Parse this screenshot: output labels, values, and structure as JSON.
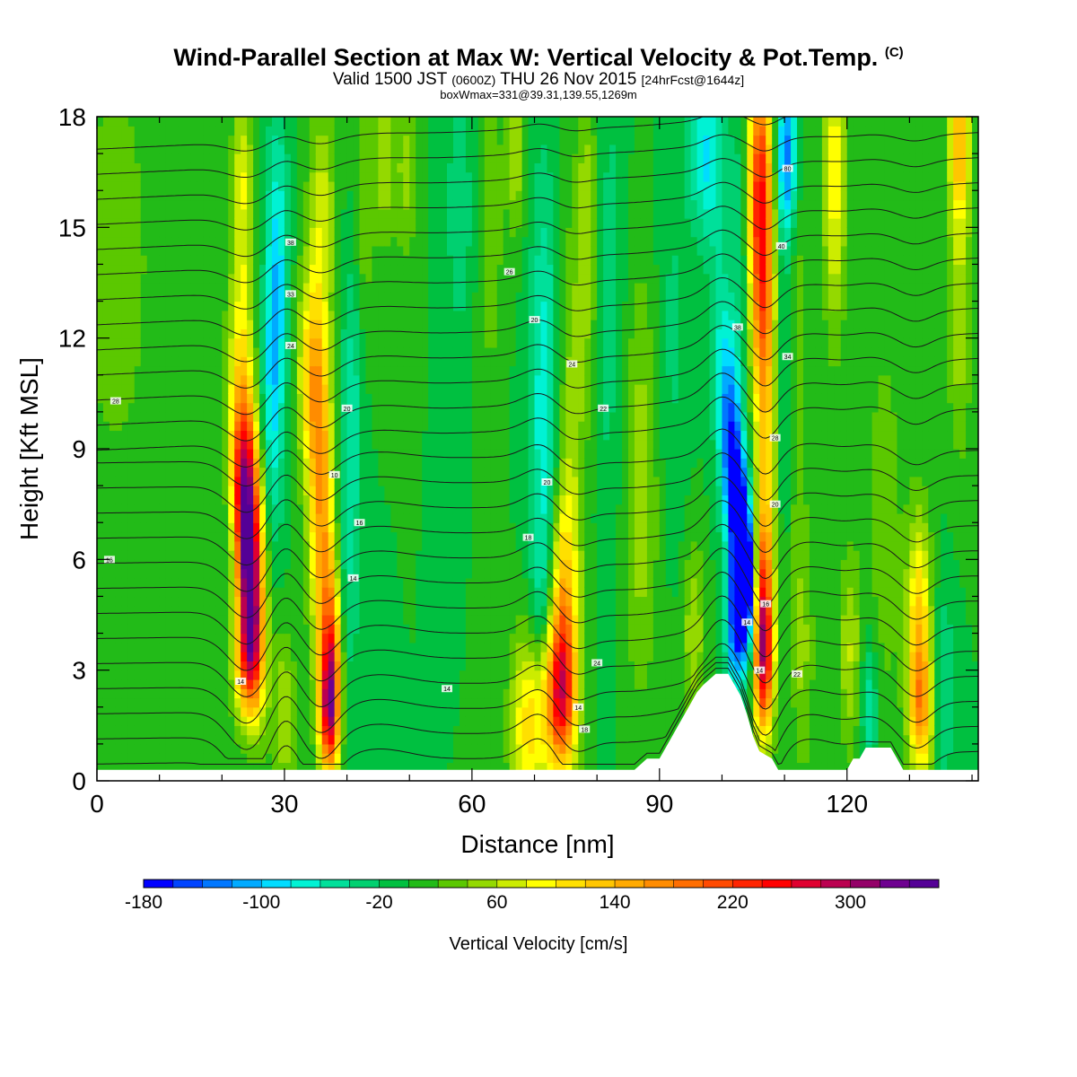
{
  "header": {
    "title_main": "Wind-Parallel Section at Max W: Vertical Velocity & Pot.Temp.",
    "title_mark": "(C)",
    "valid_prefix": "Valid 1500 JST",
    "valid_utc": "(0600Z)",
    "valid_date": "THU 26 Nov 2015",
    "forecast": "[24hrFcst@1644z]",
    "box_info": "boxWmax=331@39.31,139.55,1269m"
  },
  "chart_data": {
    "type": "heatmap",
    "xlabel": "Distance [nm]",
    "ylabel": "Height [Kft MSL]",
    "xlim": [
      0,
      141
    ],
    "ylim": [
      0,
      18
    ],
    "x_ticks": [
      0,
      30,
      60,
      90,
      120
    ],
    "y_ticks": [
      0,
      3,
      6,
      9,
      12,
      15,
      18
    ],
    "grid": false,
    "colorbar": {
      "label": "Vertical Velocity [cm/s]",
      "placement": "bottom",
      "min": -180,
      "max": 360,
      "step": 20,
      "tick_labels": [
        "-180",
        "-100",
        "-20",
        "60",
        "140",
        "220",
        "300"
      ],
      "tick_values": [
        -180,
        -100,
        -20,
        60,
        140,
        220,
        300
      ],
      "colors": [
        "#0000ff",
        "#0044ff",
        "#0077ff",
        "#00aaff",
        "#00dcff",
        "#00f2d4",
        "#00e09a",
        "#00d070",
        "#00c040",
        "#22bb18",
        "#5bc800",
        "#94d900",
        "#ccec00",
        "#ffff00",
        "#ffe000",
        "#ffc600",
        "#ffaa00",
        "#ff8c00",
        "#ff6e00",
        "#ff4a00",
        "#ff2400",
        "#ff0000",
        "#e00030",
        "#bb0050",
        "#940068",
        "#6e0090",
        "#540096"
      ]
    },
    "terrain": [
      [
        0,
        0.3
      ],
      [
        86,
        0.3
      ],
      [
        88,
        0.6
      ],
      [
        90,
        0.6
      ],
      [
        91,
        0.9
      ],
      [
        92,
        1.2
      ],
      [
        93,
        1.5
      ],
      [
        94,
        1.8
      ],
      [
        95,
        2.1
      ],
      [
        96,
        2.4
      ],
      [
        97,
        2.6
      ],
      [
        99,
        2.9
      ],
      [
        101,
        2.9
      ],
      [
        102,
        2.6
      ],
      [
        103,
        2.3
      ],
      [
        104,
        1.8
      ],
      [
        105,
        1.2
      ],
      [
        106,
        0.8
      ],
      [
        108,
        0.6
      ],
      [
        109,
        0.3
      ],
      [
        119,
        0.3
      ],
      [
        120,
        0.3
      ],
      [
        121,
        0.6
      ],
      [
        122,
        0.6
      ],
      [
        123,
        0.9
      ],
      [
        127,
        0.9
      ],
      [
        128,
        0.6
      ],
      [
        129,
        0.3
      ],
      [
        141,
        0.3
      ]
    ],
    "w_features": [
      {
        "x": 24,
        "z": 6.2,
        "sx": 1.3,
        "sz": 2.3,
        "value": 340,
        "tilt": -0.12
      },
      {
        "x": 24.5,
        "z": 8.6,
        "sx": 1.4,
        "sz": 2.5,
        "value": 150,
        "tilt": -0.15
      },
      {
        "x": 24,
        "z": 3.3,
        "sx": 1.5,
        "sz": 1.2,
        "value": 180
      },
      {
        "x": 23.5,
        "z": 14.2,
        "sx": 1.3,
        "sz": 2.2,
        "value": 70
      },
      {
        "x": 23.2,
        "z": 17,
        "sx": 1.1,
        "sz": 1.2,
        "value": 45
      },
      {
        "x": 28,
        "z": 10.5,
        "sx": 1.2,
        "sz": 3.2,
        "value": -70
      },
      {
        "x": 29,
        "z": 14,
        "sx": 1.2,
        "sz": 3,
        "value": -70
      },
      {
        "x": 30,
        "z": 1.8,
        "sx": 1.3,
        "sz": 1.6,
        "value": 60
      },
      {
        "x": 34.5,
        "z": 11,
        "sx": 1.6,
        "sz": 2,
        "value": 130
      },
      {
        "x": 36,
        "z": 7,
        "sx": 1.4,
        "sz": 2.8,
        "value": 150
      },
      {
        "x": 37.5,
        "z": 3,
        "sx": 1.1,
        "sz": 1.8,
        "value": 210
      },
      {
        "x": 37,
        "z": 1.8,
        "sx": 1.1,
        "sz": 1.1,
        "value": 150
      },
      {
        "x": 36,
        "z": 15.5,
        "sx": 1.5,
        "sz": 2,
        "value": 70
      },
      {
        "x": 40,
        "z": 6.5,
        "sx": 1.4,
        "sz": 3.5,
        "value": -40
      },
      {
        "x": 41,
        "z": 11,
        "sx": 1.1,
        "sz": 3,
        "value": -40
      },
      {
        "x": 42.5,
        "z": 15.5,
        "sx": 1.2,
        "sz": 2.5,
        "value": 40
      },
      {
        "x": 46,
        "z": 17,
        "sx": 1.3,
        "sz": 1.8,
        "value": 55
      },
      {
        "x": 49.5,
        "z": 16.5,
        "sx": 1.2,
        "sz": 1.8,
        "value": 45
      },
      {
        "x": 3,
        "z": 14,
        "sx": 5,
        "sz": 5,
        "value": 30
      },
      {
        "x": 58,
        "z": 15.5,
        "sx": 1.4,
        "sz": 2.5,
        "value": -40
      },
      {
        "x": 63,
        "z": 15,
        "sx": 1.3,
        "sz": 3,
        "value": 40
      },
      {
        "x": 67,
        "z": 17,
        "sx": 1.1,
        "sz": 1.5,
        "value": 60
      },
      {
        "x": 71.5,
        "z": 10,
        "sx": 1.6,
        "sz": 4.5,
        "value": -75
      },
      {
        "x": 71,
        "z": 5,
        "sx": 1.2,
        "sz": 1.5,
        "value": -25
      },
      {
        "x": 69,
        "z": 1.5,
        "sx": 2,
        "sz": 1.8,
        "value": 110
      },
      {
        "x": 74,
        "z": 2.2,
        "sx": 1.8,
        "sz": 1.4,
        "value": 200
      },
      {
        "x": 74.5,
        "z": 4.5,
        "sx": 1.5,
        "sz": 2.2,
        "value": 130
      },
      {
        "x": 76,
        "z": 9,
        "sx": 1.6,
        "sz": 4.5,
        "value": 50
      },
      {
        "x": 78.5,
        "z": 15,
        "sx": 1.2,
        "sz": 3,
        "value": 55
      },
      {
        "x": 82,
        "z": 13,
        "sx": 1.8,
        "sz": 5,
        "value": -30
      },
      {
        "x": 87,
        "z": 8,
        "sx": 2,
        "sz": 4,
        "value": 55
      },
      {
        "x": 92,
        "z": 12,
        "sx": 1.8,
        "sz": 3.5,
        "value": -25
      },
      {
        "x": 95.5,
        "z": 4,
        "sx": 1.2,
        "sz": 1.8,
        "value": 60
      },
      {
        "x": 97.5,
        "z": 17,
        "sx": 2,
        "sz": 1.6,
        "value": -80
      },
      {
        "x": 103.5,
        "z": 5.5,
        "sx": 1.1,
        "sz": 1.3,
        "value": -185
      },
      {
        "x": 102.5,
        "z": 7,
        "sx": 1.5,
        "sz": 2.4,
        "value": -150,
        "tilt": -0.18
      },
      {
        "x": 102,
        "z": 4,
        "sx": 1.1,
        "sz": 1.1,
        "value": -110
      },
      {
        "x": 101.5,
        "z": 10,
        "sx": 1.3,
        "sz": 3,
        "value": -80,
        "tilt": -0.15
      },
      {
        "x": 103,
        "z": 14.5,
        "sx": 1.2,
        "sz": 3,
        "value": -40
      },
      {
        "x": 106.5,
        "z": 4.5,
        "sx": 1.1,
        "sz": 1.8,
        "value": 190
      },
      {
        "x": 106.5,
        "z": 3,
        "sx": 1.2,
        "sz": 1.2,
        "value": 130
      },
      {
        "x": 107,
        "z": 8,
        "sx": 1.2,
        "sz": 4.5,
        "value": 90
      },
      {
        "x": 106,
        "z": 16.5,
        "sx": 1.4,
        "sz": 2.5,
        "value": 190
      },
      {
        "x": 106.5,
        "z": 13,
        "sx": 1.4,
        "sz": 2.5,
        "value": 120
      },
      {
        "x": 110.5,
        "z": 17,
        "sx": 1.2,
        "sz": 1.5,
        "value": -120
      },
      {
        "x": 110,
        "z": 13,
        "sx": 1.5,
        "sz": 5,
        "value": -30
      },
      {
        "x": 113,
        "z": 3.5,
        "sx": 1.3,
        "sz": 2.5,
        "value": 40
      },
      {
        "x": 112,
        "z": 12,
        "sx": 1.1,
        "sz": 5,
        "value": 40
      },
      {
        "x": 118,
        "z": 16.5,
        "sx": 1.3,
        "sz": 3,
        "value": 95
      },
      {
        "x": 120.5,
        "z": 3.5,
        "sx": 1.3,
        "sz": 2,
        "value": 60
      },
      {
        "x": 123.5,
        "z": 2,
        "sx": 1,
        "sz": 1.4,
        "value": -60
      },
      {
        "x": 126,
        "z": 7,
        "sx": 2,
        "sz": 4,
        "value": 35
      },
      {
        "x": 131.5,
        "z": 4,
        "sx": 1.4,
        "sz": 2.2,
        "value": 130
      },
      {
        "x": 132,
        "z": 1.8,
        "sx": 1.4,
        "sz": 1.2,
        "value": 100
      },
      {
        "x": 135.5,
        "z": 2.5,
        "sx": 1.4,
        "sz": 2,
        "value": -40
      },
      {
        "x": 138,
        "z": 17.5,
        "sx": 1.2,
        "sz": 1.6,
        "value": 130
      },
      {
        "x": 138,
        "z": 13,
        "sx": 1.4,
        "sz": 3,
        "value": 55
      }
    ],
    "theta_contours": {
      "levels_count": 26,
      "label_format": "two-digit"
    },
    "theta_labels": [
      {
        "x": 3,
        "z": 10.3,
        "text": "28"
      },
      {
        "x": 2,
        "z": 6,
        "text": "16"
      },
      {
        "x": 31,
        "z": 14.6,
        "text": "38"
      },
      {
        "x": 31,
        "z": 13.2,
        "text": "33"
      },
      {
        "x": 31,
        "z": 11.8,
        "text": "24"
      },
      {
        "x": 40,
        "z": 10.1,
        "text": "20"
      },
      {
        "x": 38,
        "z": 8.3,
        "text": "10"
      },
      {
        "x": 42,
        "z": 7,
        "text": "16"
      },
      {
        "x": 41,
        "z": 5.5,
        "text": "14"
      },
      {
        "x": 23,
        "z": 2.7,
        "text": "14"
      },
      {
        "x": 56,
        "z": 2.5,
        "text": "14"
      },
      {
        "x": 66,
        "z": 13.8,
        "text": "26"
      },
      {
        "x": 70,
        "z": 12.5,
        "text": "20"
      },
      {
        "x": 76,
        "z": 11.3,
        "text": "24"
      },
      {
        "x": 81,
        "z": 10.1,
        "text": "22"
      },
      {
        "x": 72,
        "z": 8.1,
        "text": "20"
      },
      {
        "x": 69,
        "z": 6.6,
        "text": "18"
      },
      {
        "x": 80,
        "z": 3.2,
        "text": "24"
      },
      {
        "x": 77,
        "z": 2,
        "text": "14"
      },
      {
        "x": 78,
        "z": 1.4,
        "text": "18"
      },
      {
        "x": 102.5,
        "z": 12.3,
        "text": "38"
      },
      {
        "x": 109.5,
        "z": 14.5,
        "text": "40"
      },
      {
        "x": 110.5,
        "z": 11.5,
        "text": "34"
      },
      {
        "x": 108.5,
        "z": 9.3,
        "text": "28"
      },
      {
        "x": 108.5,
        "z": 7.5,
        "text": "20"
      },
      {
        "x": 107,
        "z": 4.8,
        "text": "16"
      },
      {
        "x": 104,
        "z": 4.3,
        "text": "14"
      },
      {
        "x": 106,
        "z": 3,
        "text": "14"
      },
      {
        "x": 112,
        "z": 2.9,
        "text": "22"
      },
      {
        "x": 110.5,
        "z": 16.6,
        "text": "80"
      }
    ]
  }
}
